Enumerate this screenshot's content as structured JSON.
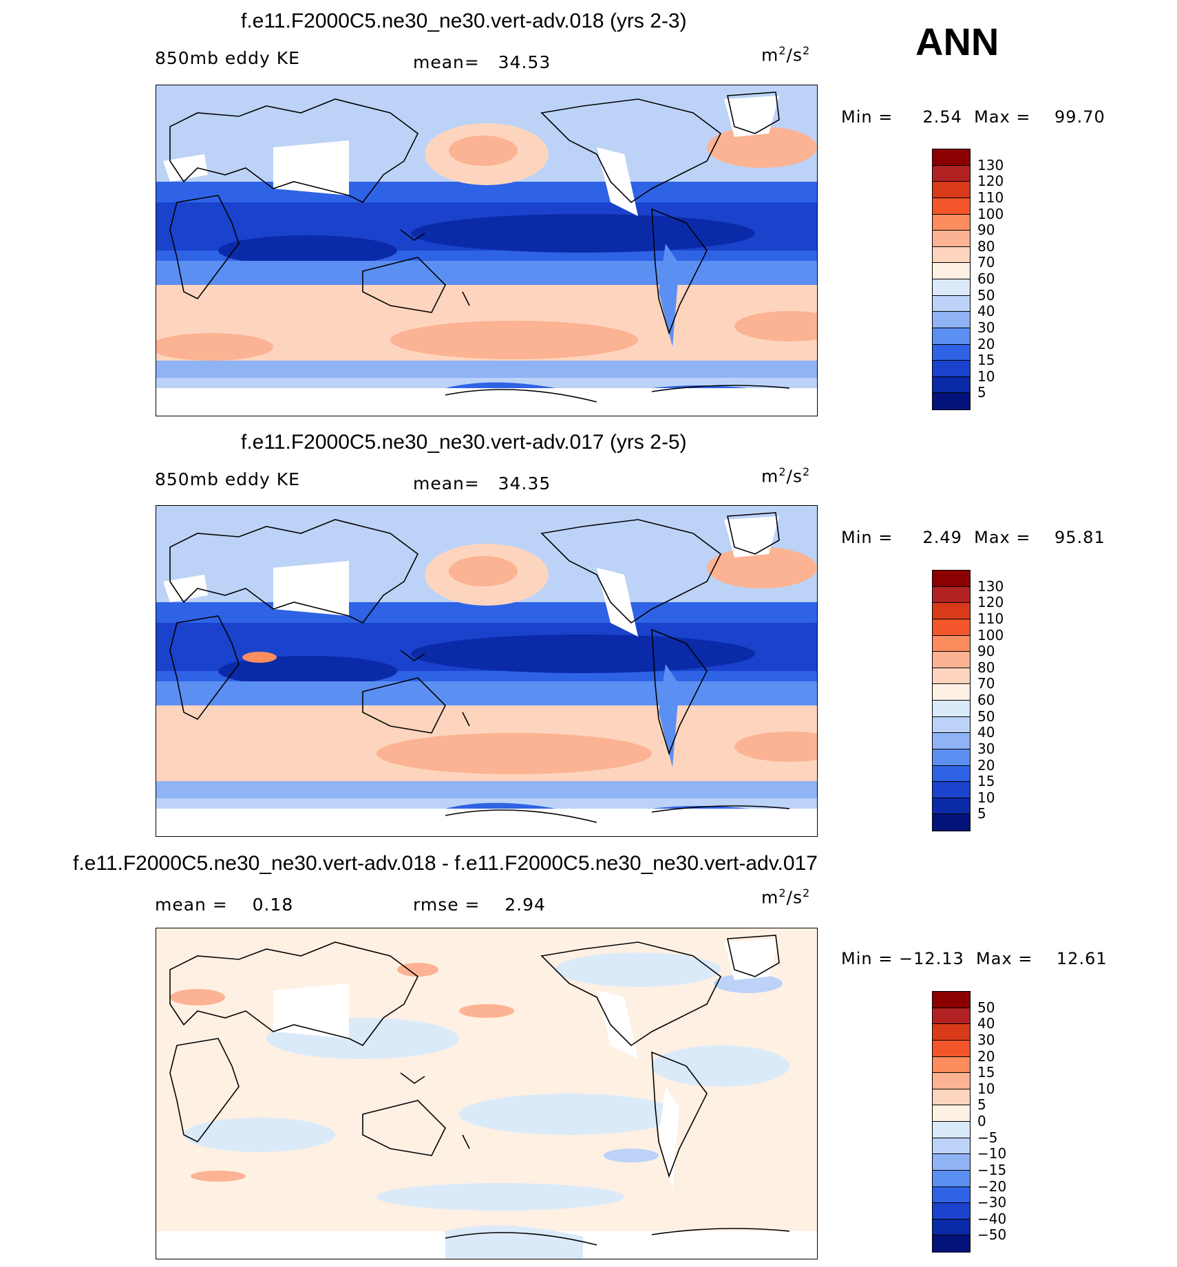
{
  "season": "ANN",
  "unit_prefix": "m",
  "unit_mid": "/s",
  "unit_exp": "2",
  "panels": [
    {
      "title": "f.e11.F2000C5.ne30_ne30.vert-adv.018 (yrs 2-3)",
      "variable": "850mb eddy KE",
      "stat": "mean=   34.53",
      "minmax": "Min =     2.54  Max =    99.70",
      "colorbar": {
        "labels": [
          "130",
          "120",
          "110",
          "100",
          "90",
          "80",
          "70",
          "60",
          "50",
          "40",
          "30",
          "20",
          "15",
          "10",
          "5"
        ],
        "colors": [
          "#8b0000",
          "#b22222",
          "#d93a1a",
          "#f2562a",
          "#fb8d5e",
          "#fcb393",
          "#fdd5be",
          "#fff0e4",
          "#dbeaf8",
          "#bcd3f7",
          "#8fb3f5",
          "#5c8ff2",
          "#2f63e6",
          "#1a42cc",
          "#0b2aa8",
          "#04137a"
        ]
      }
    },
    {
      "title": "f.e11.F2000C5.ne30_ne30.vert-adv.017 (yrs 2-5)",
      "variable": "850mb eddy KE",
      "stat": "mean=   34.35",
      "minmax": "Min =     2.49  Max =    95.81",
      "colorbar": {
        "labels": [
          "130",
          "120",
          "110",
          "100",
          "90",
          "80",
          "70",
          "60",
          "50",
          "40",
          "30",
          "20",
          "15",
          "10",
          "5"
        ],
        "colors": [
          "#8b0000",
          "#b22222",
          "#d93a1a",
          "#f2562a",
          "#fb8d5e",
          "#fcb393",
          "#fdd5be",
          "#fff0e4",
          "#dbeaf8",
          "#bcd3f7",
          "#8fb3f5",
          "#5c8ff2",
          "#2f63e6",
          "#1a42cc",
          "#0b2aa8",
          "#04137a"
        ]
      }
    },
    {
      "title": "f.e11.F2000C5.ne30_ne30.vert-adv.018 - f.e11.F2000C5.ne30_ne30.vert-adv.017",
      "stat_mean": "mean =    0.18",
      "stat_rmse": "rmse =    2.94",
      "minmax": "Min = −12.13  Max =    12.61",
      "colorbar": {
        "labels": [
          "50",
          "40",
          "30",
          "20",
          "15",
          "10",
          "5",
          "0",
          "−5",
          "−10",
          "−15",
          "−20",
          "−30",
          "−40",
          "−50"
        ],
        "colors": [
          "#8b0000",
          "#b22222",
          "#d93a1a",
          "#f2562a",
          "#fb8d5e",
          "#fcb393",
          "#fdd5be",
          "#fff0e4",
          "#dbeaf8",
          "#bcd3f7",
          "#8fb3f5",
          "#5c8ff2",
          "#2f63e6",
          "#1a42cc",
          "#0b2aa8",
          "#04137a"
        ]
      }
    }
  ]
}
